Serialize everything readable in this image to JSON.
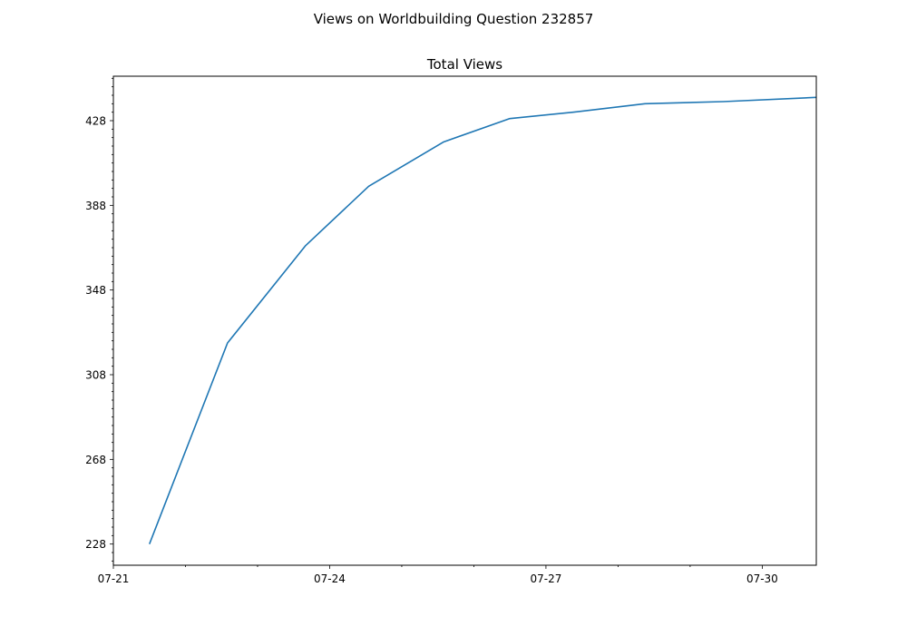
{
  "figure_title": "Views on Worldbuilding Question 232857",
  "chart_data": {
    "type": "line",
    "title": "Total Views",
    "xlabel": "",
    "ylabel": "",
    "x": [
      "2020-07-21 12:00",
      "2020-07-22 14:00",
      "2020-07-23 16:00",
      "2020-07-24 13:00",
      "2020-07-25 14:00",
      "2020-07-26 12:00",
      "2020-07-27 09:00",
      "2020-07-28 09:00",
      "2020-07-29 11:00",
      "2020-07-30 18:00"
    ],
    "series": [
      {
        "values": [
          228,
          323,
          369,
          397,
          418,
          429,
          432,
          436,
          437,
          439
        ],
        "color": "#1f77b4"
      }
    ],
    "xlim": [
      "2020-07-21",
      "2020-07-30 18:00"
    ],
    "ylim": [
      218,
      449
    ],
    "x_ticks": [
      "07-21",
      "07-24",
      "07-27",
      "07-30"
    ],
    "y_ticks": [
      228,
      268,
      308,
      348,
      388,
      428
    ],
    "y_minor_step": 4,
    "x_minor_step_days": 1,
    "grid": false,
    "legend": "none"
  }
}
